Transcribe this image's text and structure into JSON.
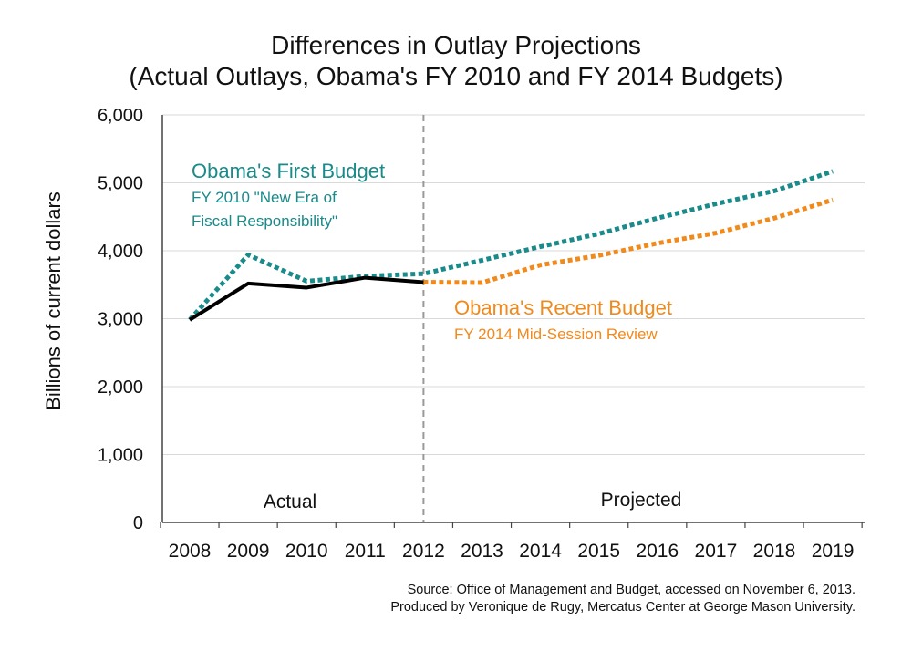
{
  "chart_data": {
    "type": "line",
    "title": "Differences in Outlay Projections",
    "subtitle": "(Actual Outlays, Obama's FY 2010 and FY 2014 Budgets)",
    "ylabel": "Billions of current dollars",
    "xlabel": "",
    "ylim": [
      0,
      6000
    ],
    "yticks": [
      0,
      1000,
      2000,
      3000,
      4000,
      5000,
      6000
    ],
    "ytick_labels": [
      "0",
      "1,000",
      "2,000",
      "3,000",
      "4,000",
      "5,000",
      "6,000"
    ],
    "x": [
      "2008",
      "2009",
      "2010",
      "2011",
      "2012",
      "2013",
      "2014",
      "2015",
      "2016",
      "2017",
      "2018",
      "2019"
    ],
    "grid": true,
    "divider_after": "2012",
    "regions": [
      "Actual",
      "Projected"
    ],
    "series": [
      {
        "key": "first",
        "name": "Obama's First Budget",
        "sublabel": [
          "FY 2010 \"New Era of",
          "Fiscal Responsibility\""
        ],
        "color": "#1a8a8a",
        "style": "dotted",
        "x": [
          "2008",
          "2009",
          "2010",
          "2011",
          "2012",
          "2013",
          "2014",
          "2015",
          "2016",
          "2017",
          "2018",
          "2019"
        ],
        "values": [
          2983,
          3940,
          3552,
          3625,
          3662,
          3860,
          4060,
          4250,
          4480,
          4690,
          4880,
          5170
        ]
      },
      {
        "key": "recent",
        "name": "Obama's Recent Budget",
        "sublabel": [
          "FY 2014 Mid-Session Review"
        ],
        "color": "#f08a1c",
        "style": "dotted",
        "x": [
          "2012",
          "2013",
          "2014",
          "2015",
          "2016",
          "2017",
          "2018",
          "2019"
        ],
        "values": [
          3537,
          3530,
          3790,
          3930,
          4110,
          4260,
          4480,
          4750
        ]
      },
      {
        "key": "actual",
        "name": "",
        "color": "#000000",
        "style": "solid",
        "x": [
          "2008",
          "2009",
          "2010",
          "2011",
          "2012"
        ],
        "values": [
          2983,
          3518,
          3457,
          3603,
          3537
        ]
      }
    ]
  },
  "source": {
    "line1": "Source: Office of Management and Budget, accessed on November 6, 2013.",
    "line2": "Produced by Veronique de Rugy, Mercatus Center at George Mason University."
  }
}
